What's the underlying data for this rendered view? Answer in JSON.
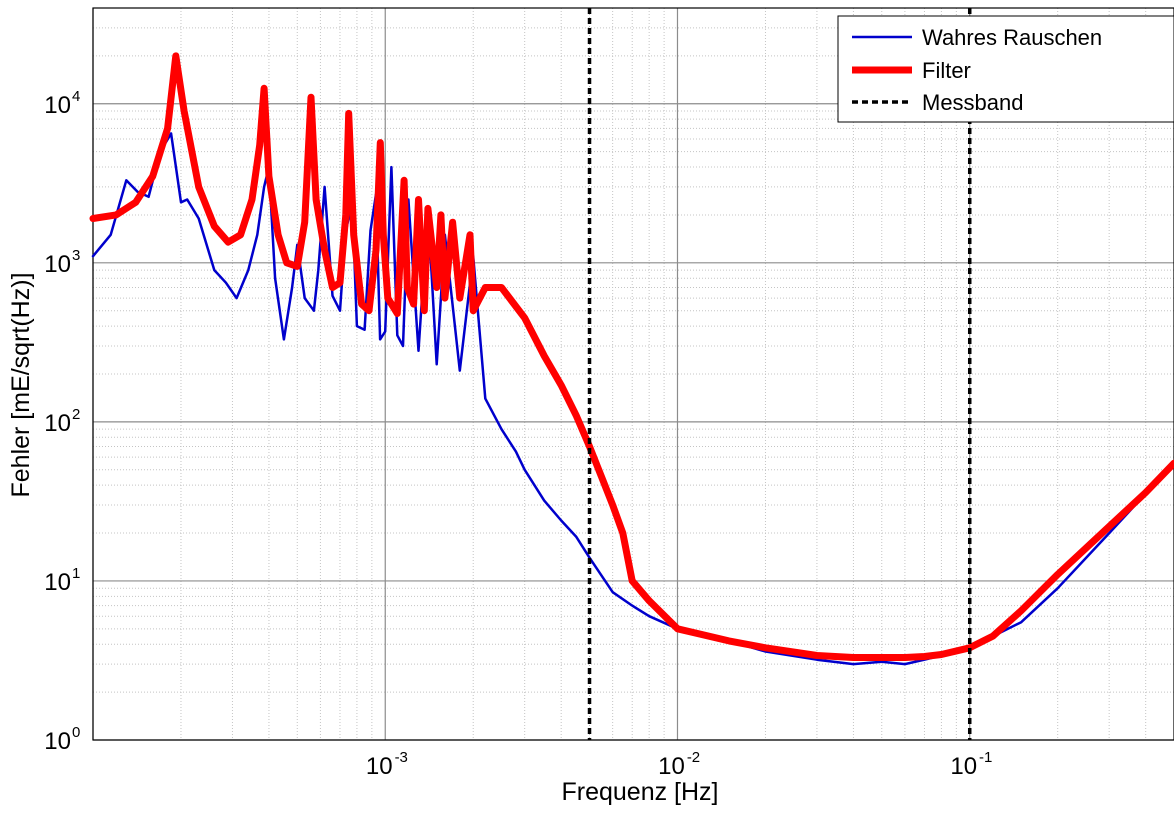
{
  "chart_data": {
    "type": "line",
    "title": "",
    "xlabel": "Frequenz [Hz]",
    "ylabel": "Fehler [mE/sqrt(Hz)]",
    "xscale": "log",
    "yscale": "log",
    "xlim": [
      0.0001,
      0.5
    ],
    "ylim": [
      1,
      40000
    ],
    "grid": true,
    "legend_position": "top-right",
    "x_tick_labels": [
      {
        "base": "10",
        "exp": "-3",
        "value": 0.001
      },
      {
        "base": "10",
        "exp": "-2",
        "value": 0.01
      },
      {
        "base": "10",
        "exp": "-1",
        "value": 0.1
      }
    ],
    "y_tick_labels": [
      {
        "base": "10",
        "exp": "0",
        "value": 1
      },
      {
        "base": "10",
        "exp": "1",
        "value": 10
      },
      {
        "base": "10",
        "exp": "2",
        "value": 100
      },
      {
        "base": "10",
        "exp": "3",
        "value": 1000
      },
      {
        "base": "10",
        "exp": "4",
        "value": 10000
      }
    ],
    "series": [
      {
        "name": "Wahres Rauschen",
        "color": "#0000cc",
        "style": "solid-thin",
        "x": [
          0.0001,
          0.000115,
          0.00013,
          0.000142,
          0.000155,
          0.00017,
          0.000185,
          0.0002,
          0.00021,
          0.00023,
          0.00026,
          0.000285,
          0.00031,
          0.00034,
          0.000365,
          0.000385,
          0.0004,
          0.00042,
          0.00045,
          0.00048,
          0.0005,
          0.00053,
          0.00057,
          0.00059,
          0.00062,
          0.00066,
          0.0007,
          0.00073,
          0.00077,
          0.0008,
          0.00085,
          0.00089,
          0.00093,
          0.00096,
          0.001,
          0.00105,
          0.0011,
          0.00115,
          0.0012,
          0.0013,
          0.0014,
          0.0015,
          0.0016,
          0.0018,
          0.002,
          0.0022,
          0.0025,
          0.0028,
          0.003,
          0.0035,
          0.004,
          0.0045,
          0.005,
          0.006,
          0.007,
          0.008,
          0.01,
          0.015,
          0.02,
          0.03,
          0.04,
          0.05,
          0.06,
          0.07,
          0.08,
          0.1,
          0.15,
          0.2,
          0.3,
          0.5
        ],
        "y": [
          1100,
          1500,
          3300,
          2800,
          2600,
          5000,
          6500,
          2400,
          2500,
          1900,
          900,
          750,
          600,
          900,
          1500,
          3000,
          4000,
          800,
          330,
          700,
          1300,
          600,
          500,
          900,
          3000,
          620,
          500,
          1500,
          2500,
          400,
          380,
          1600,
          2700,
          330,
          370,
          4000,
          350,
          300,
          2500,
          280,
          2200,
          230,
          1500,
          210,
          1100,
          140,
          90,
          65,
          50,
          32,
          24,
          19,
          14,
          8.5,
          7,
          6,
          5,
          4.2,
          3.6,
          3.2,
          3,
          3.1,
          3,
          3.2,
          3.4,
          3.8,
          5.5,
          9,
          20,
          55
        ]
      },
      {
        "name": "Filter",
        "color": "#ff0000",
        "style": "solid-thick",
        "x": [
          0.0001,
          0.00012,
          0.00014,
          0.00016,
          0.00018,
          0.000192,
          0.000205,
          0.00023,
          0.00026,
          0.00029,
          0.00032,
          0.00035,
          0.000372,
          0.000385,
          0.0004,
          0.00043,
          0.00046,
          0.0005,
          0.00053,
          0.000557,
          0.00058,
          0.00062,
          0.00066,
          0.0007,
          0.000733,
          0.00075,
          0.00078,
          0.00083,
          0.00088,
          0.00093,
          0.000962,
          0.000985,
          0.00102,
          0.0011,
          0.00116,
          0.00119,
          0.00125,
          0.0013,
          0.00136,
          0.0014,
          0.0015,
          0.00155,
          0.0016,
          0.0017,
          0.0018,
          0.00195,
          0.002,
          0.0022,
          0.0025,
          0.003,
          0.0035,
          0.004,
          0.0045,
          0.005,
          0.0055,
          0.006,
          0.0065,
          0.007,
          0.008,
          0.01,
          0.015,
          0.02,
          0.03,
          0.04,
          0.05,
          0.06,
          0.07,
          0.08,
          0.1,
          0.12,
          0.15,
          0.2,
          0.3,
          0.4,
          0.5
        ],
        "y": [
          1900,
          2000,
          2400,
          3500,
          7000,
          20000,
          9000,
          3000,
          1700,
          1350,
          1500,
          2500,
          5500,
          12500,
          3500,
          1500,
          1000,
          950,
          1800,
          11000,
          2500,
          1200,
          700,
          750,
          2000,
          8700,
          1500,
          550,
          500,
          1200,
          5700,
          1500,
          600,
          480,
          3300,
          700,
          550,
          2500,
          500,
          2200,
          700,
          2000,
          600,
          1800,
          600,
          1500,
          500,
          700,
          700,
          450,
          260,
          170,
          110,
          70,
          45,
          30,
          20,
          10,
          7.5,
          5,
          4.2,
          3.8,
          3.4,
          3.3,
          3.3,
          3.3,
          3.35,
          3.45,
          3.8,
          4.5,
          6.5,
          11,
          22,
          36,
          55
        ]
      },
      {
        "name": "Messband",
        "color": "#000000",
        "style": "dashed",
        "vertical_lines_x": [
          0.005,
          0.1
        ]
      }
    ]
  }
}
